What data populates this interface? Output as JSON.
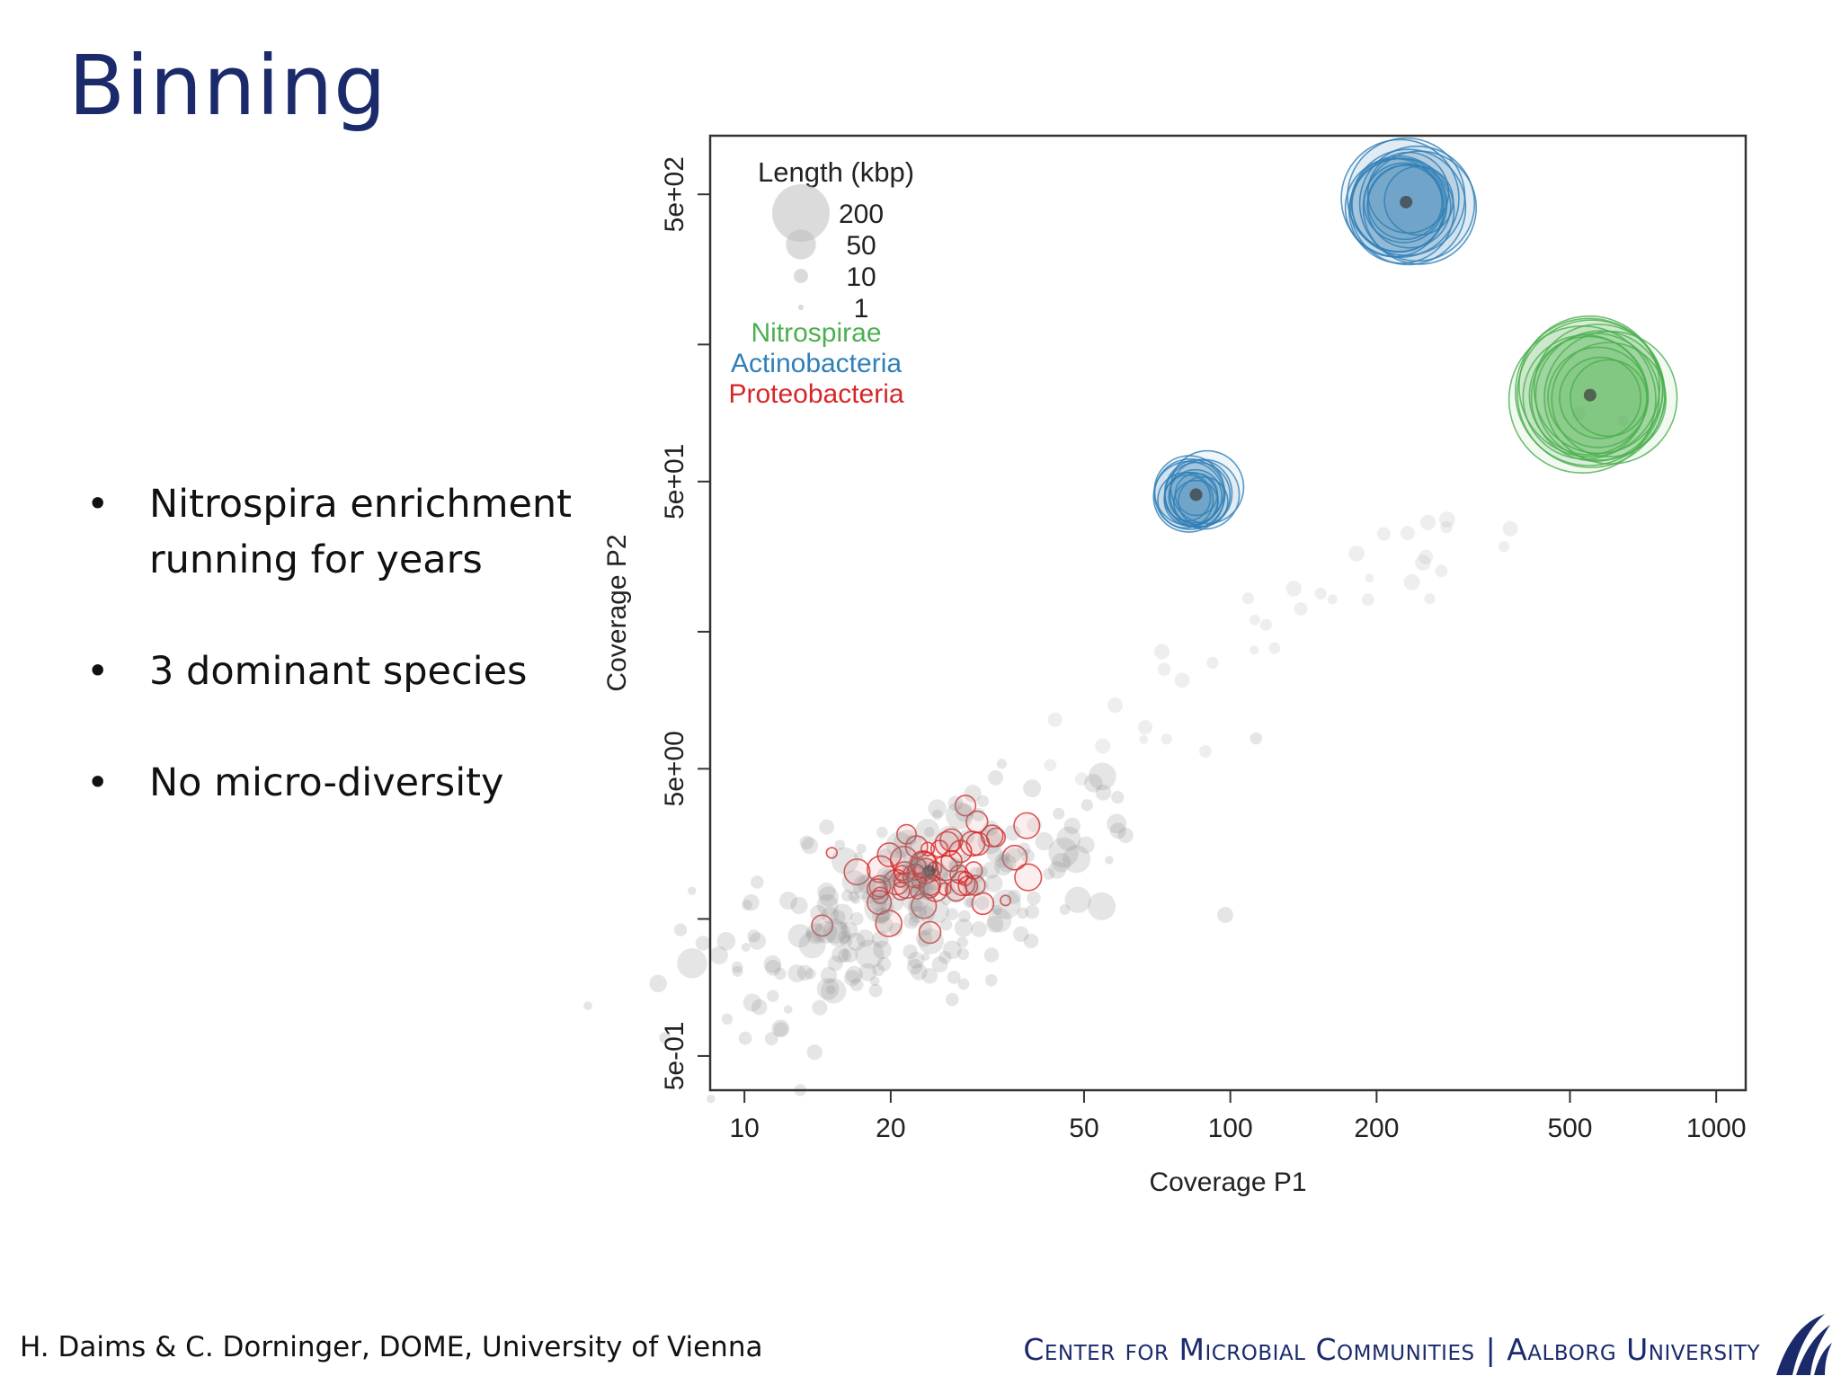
{
  "slide": {
    "title": "Binning",
    "bullets": [
      "Nitrospira enrichment running for years",
      "3 dominant species",
      "No micro-diversity"
    ],
    "footer_left": "H. Daims & C. Dorninger, DOME, University of Vienna",
    "footer_right_a": "Center for Microbial Communities",
    "footer_sep": "|",
    "footer_right_b": "Aalborg University"
  },
  "chart_data": {
    "type": "scatter",
    "xlabel": "Coverage P1",
    "ylabel": "Coverage P2",
    "x_scale": "log",
    "y_scale": "log",
    "xlim": [
      8.5,
      1150
    ],
    "ylim": [
      0.38,
      800
    ],
    "x_ticks": [
      10,
      20,
      50,
      100,
      200,
      500,
      1000
    ],
    "x_tick_labels": [
      "10",
      "20",
      "50",
      "100",
      "200",
      "500",
      "1000"
    ],
    "y_ticks": [
      0.5,
      5,
      50,
      500
    ],
    "y_tick_labels": [
      "5e-01",
      "5e+00",
      "5e+01",
      "5e+02"
    ],
    "y_minor_ticks": [
      1.5,
      15,
      150
    ],
    "grid": false,
    "legend": {
      "position": "top-left",
      "size_title": "Length (kbp)",
      "sizes": [
        {
          "label": "200",
          "kbp": 200
        },
        {
          "label": "50",
          "kbp": 50
        },
        {
          "label": "10",
          "kbp": 10
        },
        {
          "label": "1",
          "kbp": 1
        }
      ],
      "groups": [
        {
          "name": "Nitrospirae",
          "color": "#4caf50"
        },
        {
          "name": "Actinobacteria",
          "color": "#2f7fb8"
        },
        {
          "name": "Proteobacteria",
          "color": "#d62728"
        }
      ]
    },
    "clusters": [
      {
        "group": "Actinobacteria",
        "x_center": 230,
        "y_center": 470,
        "count": 14,
        "max_kbp": 150
      },
      {
        "group": "Actinobacteria",
        "x_center": 85,
        "y_center": 45,
        "count": 14,
        "max_kbp": 60
      },
      {
        "group": "Nitrospirae",
        "x_center": 550,
        "y_center": 100,
        "count": 14,
        "max_kbp": 240
      },
      {
        "group": "Proteobacteria",
        "x_center": 24,
        "y_center": 2.2,
        "count": 60,
        "max_kbp": 6
      },
      {
        "group": "unassigned",
        "x_center": 22,
        "y_center": 1.7,
        "count": 240,
        "max_kbp": 8
      }
    ]
  }
}
